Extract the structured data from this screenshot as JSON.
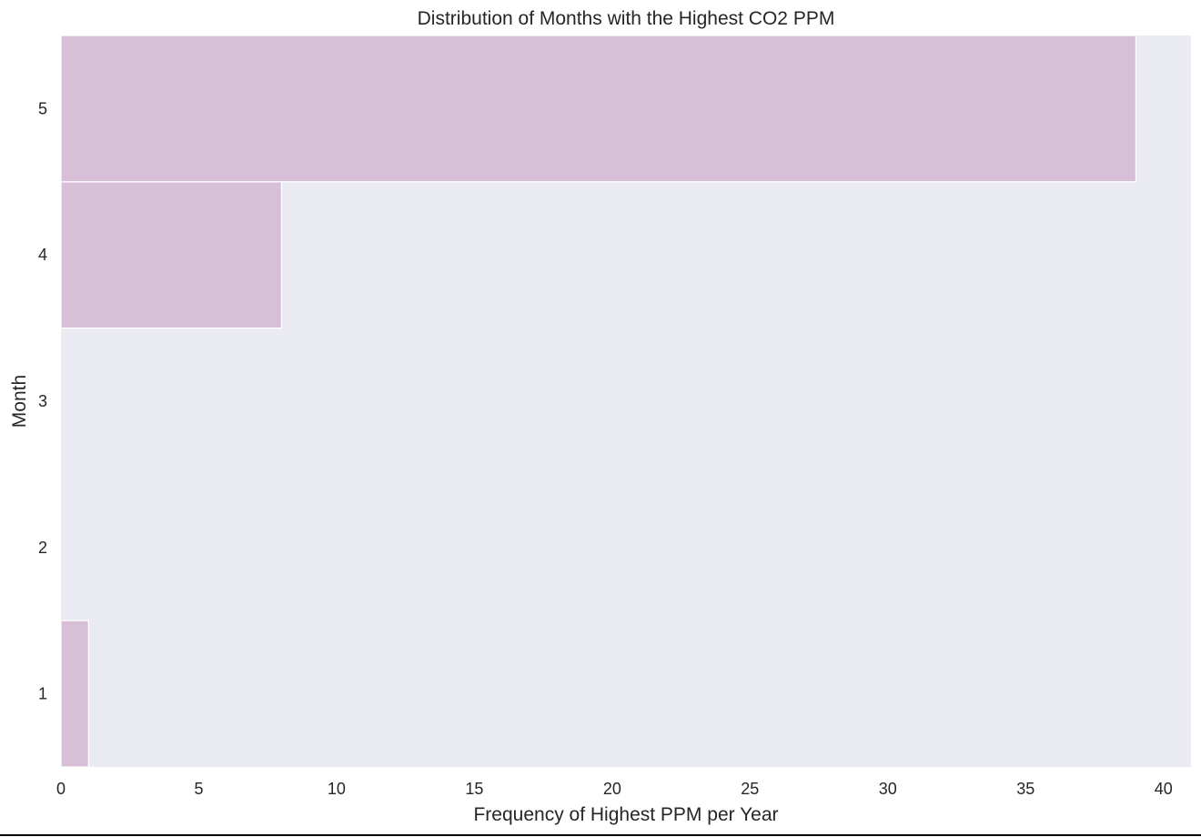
{
  "chart_data": {
    "type": "bar",
    "orientation": "horizontal",
    "title": "Distribution of Months with the Highest CO2 PPM",
    "xlabel": "Frequency of Highest PPM per Year",
    "ylabel": "Month",
    "categories": [
      "1",
      "2",
      "3",
      "4",
      "5"
    ],
    "values": [
      1,
      0,
      0,
      8,
      39
    ],
    "xlim": [
      0,
      41
    ],
    "ylim": [
      0.5,
      5.5
    ],
    "x_ticks": [
      "0",
      "5",
      "10",
      "15",
      "20",
      "25",
      "30",
      "35",
      "40"
    ],
    "y_ticks": [
      "1",
      "2",
      "3",
      "4",
      "5"
    ],
    "grid": false,
    "colors": {
      "bar": "#d8bfd8",
      "bar_edge": "#ffffff",
      "plot_background": "#eaeaf2",
      "text": "#262626"
    }
  }
}
